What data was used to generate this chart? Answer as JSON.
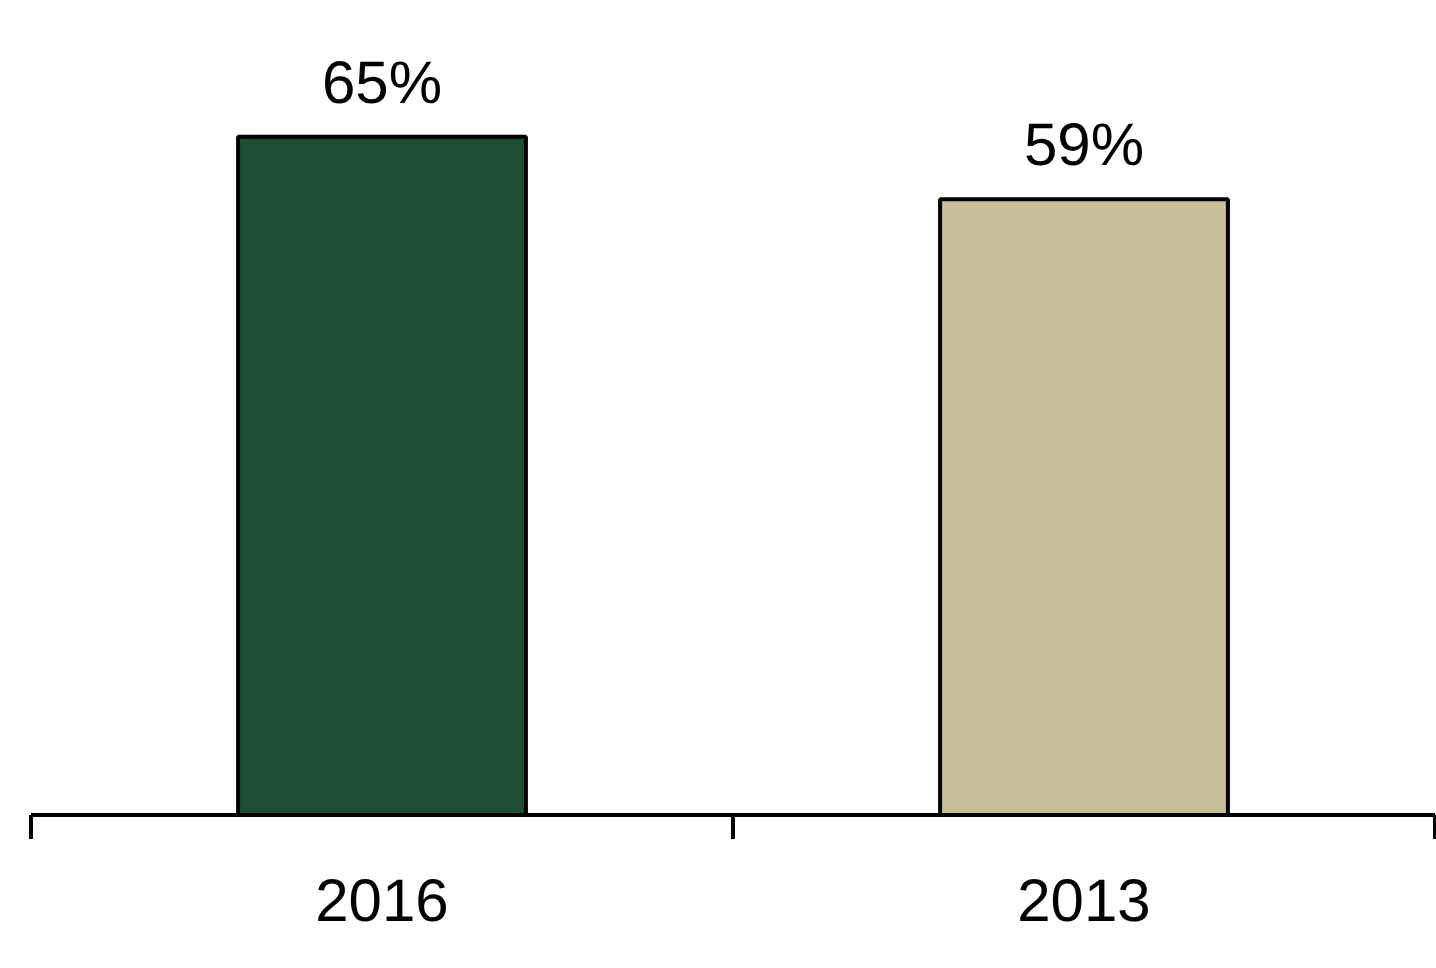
{
  "chart_data": {
    "type": "bar",
    "categories": [
      "2016",
      "2013"
    ],
    "values": [
      65,
      59
    ],
    "colors": [
      "#1e4d35",
      "#c6bf9a"
    ],
    "value_labels": [
      "65%",
      "59%"
    ]
  }
}
